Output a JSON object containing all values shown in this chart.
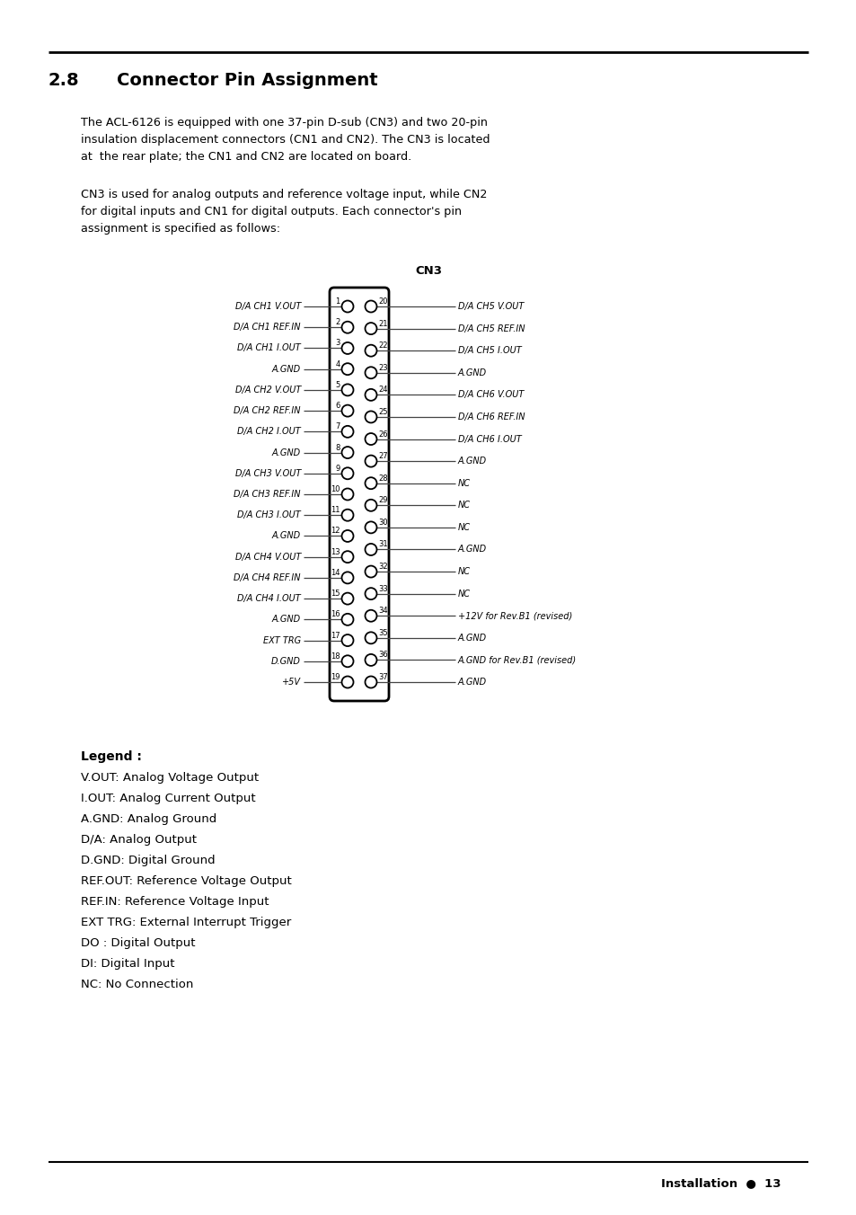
{
  "title_num": "2.8",
  "title_text": "Connector Pin Assignment",
  "paragraph1": "The ACL-6126 is equipped with one 37-pin D-sub (CN3) and two 20-pin\ninsulation displacement connectors (CN1 and CN2). The CN3 is located\nat  the rear plate; the CN1 and CN2 are located on board.",
  "paragraph2": "CN3 is used for analog outputs and reference voltage input, while CN2\nfor digital inputs and CN1 for digital outputs. Each connector's pin\nassignment is specified as follows:",
  "cn3_label": "CN3",
  "left_pins": [
    {
      "num": 1,
      "label": "D/A CH1 V.OUT"
    },
    {
      "num": 2,
      "label": "D/A CH1 REF.IN"
    },
    {
      "num": 3,
      "label": "D/A CH1 I.OUT"
    },
    {
      "num": 4,
      "label": "A.GND"
    },
    {
      "num": 5,
      "label": "D/A CH2 V.OUT"
    },
    {
      "num": 6,
      "label": "D/A CH2 REF.IN"
    },
    {
      "num": 7,
      "label": "D/A CH2 I.OUT"
    },
    {
      "num": 8,
      "label": "A.GND"
    },
    {
      "num": 9,
      "label": "D/A CH3 V.OUT"
    },
    {
      "num": 10,
      "label": "D/A CH3 REF.IN"
    },
    {
      "num": 11,
      "label": "D/A CH3 I.OUT"
    },
    {
      "num": 12,
      "label": "A.GND"
    },
    {
      "num": 13,
      "label": "D/A CH4 V.OUT"
    },
    {
      "num": 14,
      "label": "D/A CH4 REF.IN"
    },
    {
      "num": 15,
      "label": "D/A CH4 I.OUT"
    },
    {
      "num": 16,
      "label": "A.GND"
    },
    {
      "num": 17,
      "label": "EXT TRG"
    },
    {
      "num": 18,
      "label": "D.GND"
    },
    {
      "num": 19,
      "label": "+5V"
    }
  ],
  "right_pins": [
    {
      "num": 20,
      "label": "D/A CH5 V.OUT"
    },
    {
      "num": 21,
      "label": "D/A CH5 REF.IN"
    },
    {
      "num": 22,
      "label": "D/A CH5 I.OUT"
    },
    {
      "num": 23,
      "label": "A.GND"
    },
    {
      "num": 24,
      "label": "D/A CH6 V.OUT"
    },
    {
      "num": 25,
      "label": "D/A CH6 REF.IN"
    },
    {
      "num": 26,
      "label": "D/A CH6 I.OUT"
    },
    {
      "num": 27,
      "label": "A.GND"
    },
    {
      "num": 28,
      "label": "NC"
    },
    {
      "num": 29,
      "label": "NC"
    },
    {
      "num": 30,
      "label": "NC"
    },
    {
      "num": 31,
      "label": "A.GND"
    },
    {
      "num": 32,
      "label": "NC"
    },
    {
      "num": 33,
      "label": "NC"
    },
    {
      "num": 34,
      "label": "+12V for Rev.B1 (revised)"
    },
    {
      "num": 35,
      "label": "A.GND"
    },
    {
      "num": 36,
      "label": "A.GND for Rev.B1 (revised)"
    },
    {
      "num": 37,
      "label": "A.GND"
    }
  ],
  "legend_title": "Legend :",
  "legend_items": [
    "V.OUT: Analog Voltage Output",
    "I.OUT: Analog Current Output",
    "A.GND: Analog Ground",
    "D/A: Analog Output",
    "D.GND: Digital Ground",
    "REF.OUT: Reference Voltage Output",
    "REF.IN: Reference Voltage Input",
    "EXT TRG: External Interrupt Trigger",
    "DO : Digital Output",
    "DI: Digital Input",
    "NC: No Connection"
  ],
  "footer_text": "Installation",
  "footer_page": "13",
  "bg_color": "#ffffff",
  "text_color": "#000000"
}
